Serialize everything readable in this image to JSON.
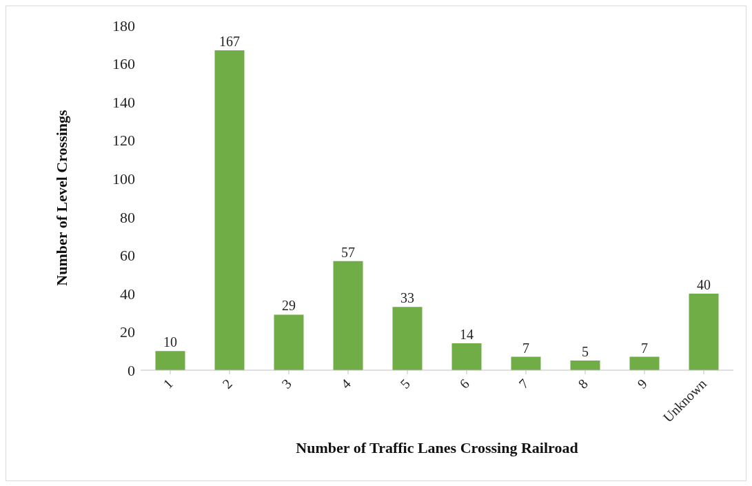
{
  "chart_data": {
    "type": "bar",
    "xlabel": "Number of Traffic  Lanes Crossing Railroad",
    "ylabel": "Number of Level Crossings",
    "categories": [
      "1",
      "2",
      "3",
      "4",
      "5",
      "6",
      "7",
      "8",
      "9",
      "Unknown"
    ],
    "values": [
      10,
      167,
      29,
      57,
      33,
      14,
      7,
      5,
      7,
      40
    ],
    "color": "#70ad47",
    "ylim": [
      0,
      180
    ],
    "yticks": [
      0,
      20,
      40,
      60,
      80,
      100,
      120,
      140,
      160,
      180
    ],
    "grid": false,
    "data_labels": true
  }
}
